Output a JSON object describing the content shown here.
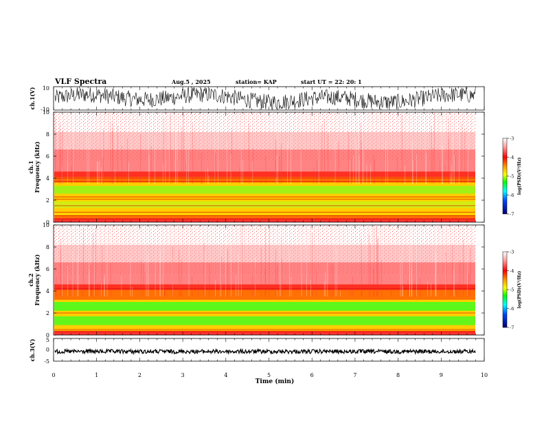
{
  "header": {
    "title": "VLF Spectra",
    "date": "Aug.5 , 2025",
    "station": "station= KAP",
    "start": "start UT = 22: 20: 1"
  },
  "chart_data": [
    {
      "type": "line",
      "name": "ch1-waveform",
      "ylabel": "ch.1(V)",
      "ylim": [
        -10,
        10
      ],
      "yticks": [
        "10",
        "-10"
      ],
      "xlim": [
        0,
        10
      ]
    },
    {
      "type": "heatmap",
      "name": "ch1-spectrogram",
      "ylabel": "ch.1\nFrequency (kHz)",
      "ylabel_top": "ch.1",
      "ylabel_bottom": "Frequency (kHz)",
      "ylim": [
        0,
        10
      ],
      "yticks": [
        "0",
        "2",
        "4",
        "6",
        "8",
        "10"
      ],
      "xlim": [
        0,
        9.8
      ],
      "colorbar": {
        "label": "log(PSD)(V²/Hz)",
        "range": [
          -7,
          -3
        ],
        "ticks": [
          "-3",
          "-4",
          "-5",
          "-6",
          "-7"
        ]
      }
    },
    {
      "type": "heatmap",
      "name": "ch2-spectrogram",
      "ylabel_top": "ch.2",
      "ylabel_bottom": "Frequency (kHz)",
      "ylim": [
        0,
        10
      ],
      "yticks": [
        "0",
        "2",
        "4",
        "6",
        "8",
        "10"
      ],
      "xlim": [
        0,
        9.8
      ],
      "colorbar": {
        "label": "log(PSD)(V²/Hz)",
        "range": [
          -7,
          -3
        ],
        "ticks": [
          "-3",
          "-4",
          "-5",
          "-6",
          "-7"
        ]
      }
    },
    {
      "type": "line",
      "name": "ch3-waveform",
      "ylabel": "ch.3(V)",
      "ylim": [
        -5,
        5
      ],
      "yticks": [
        "5",
        "0",
        "-5"
      ],
      "xlim": [
        0,
        10
      ]
    }
  ],
  "xaxis": {
    "label": "Time (min)",
    "ticks": [
      "0",
      "1",
      "2",
      "3",
      "4",
      "5",
      "6",
      "7",
      "8",
      "9",
      "10"
    ]
  }
}
